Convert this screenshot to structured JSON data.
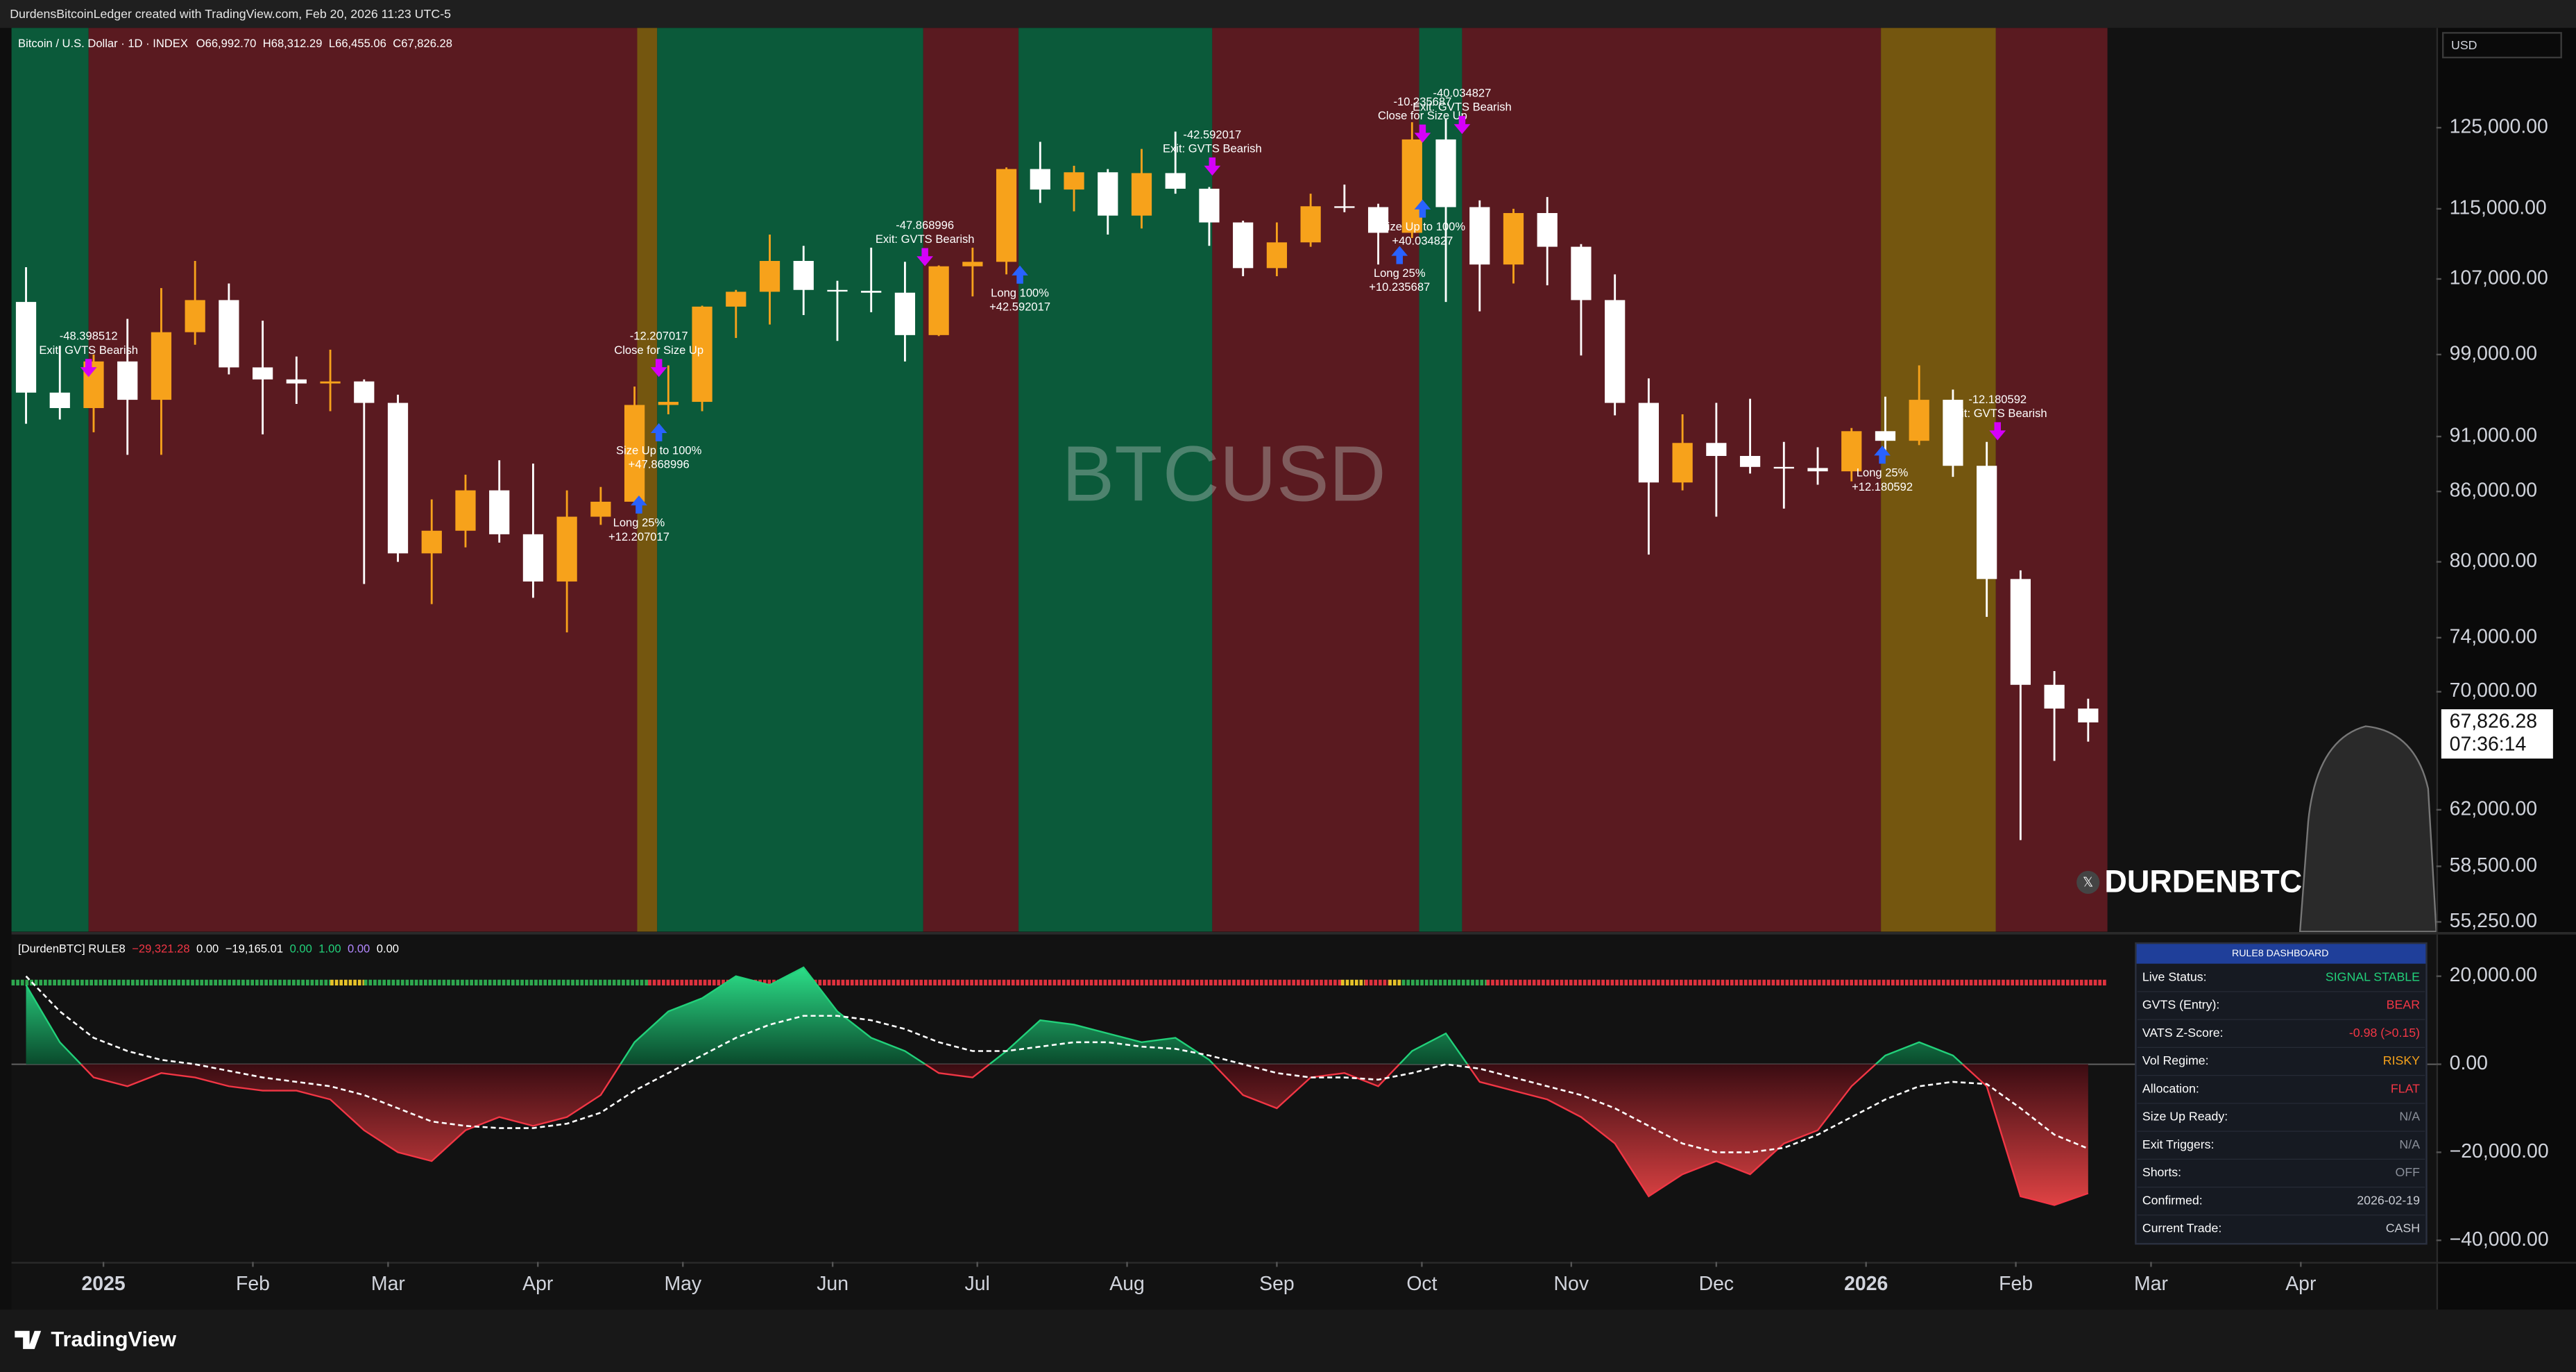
{
  "header": {
    "text": "DurdensBitcoinLedger created with TradingView.com, Feb 20, 2026 11:23 UTC-5"
  },
  "chart_data": [
    {
      "type": "candlestick",
      "title": "Bitcoin / U.S. Dollar · 1D · INDEX",
      "ohlc_labels": [
        "O66,992.70",
        "H68,312.29",
        "L66,455.06",
        "C67,826.28"
      ],
      "watermark": "BTCUSD",
      "currency": "USD",
      "categories": [
        null,
        null,
        null,
        null,
        null,
        null,
        null,
        null,
        null,
        null,
        null,
        null,
        null,
        null,
        null,
        null,
        null,
        null,
        null,
        null,
        null,
        null,
        null,
        null,
        null,
        null,
        null,
        null,
        null,
        null,
        null,
        null,
        null,
        null,
        null,
        null,
        null,
        null,
        null,
        null,
        null,
        null,
        null,
        null,
        null,
        null,
        null,
        null,
        null,
        null,
        null,
        null,
        null,
        null,
        null,
        null,
        null,
        null,
        null,
        null,
        null,
        null
      ],
      "open": [
        104500,
        95200,
        93700,
        98300,
        94500,
        101300,
        104700,
        97700,
        96500,
        96100,
        96300,
        94200,
        80700,
        82600,
        86100,
        82300,
        78400,
        83800,
        85100,
        94000,
        94300,
        104000,
        105600,
        109000,
        105800,
        105700,
        105500,
        101000,
        108400,
        108900,
        119800,
        117300,
        119400,
        114200,
        119300,
        117400,
        113400,
        108200,
        111100,
        115300,
        115200,
        112200,
        123500,
        115200,
        108600,
        114500,
        110600,
        104700,
        94200,
        86800,
        90400,
        89200,
        88200,
        88100,
        87800,
        91500,
        90600,
        94500,
        88300,
        78600,
        70500,
        68800
      ],
      "high": [
        108300,
        99900,
        99000,
        102700,
        106000,
        109000,
        106500,
        102500,
        98800,
        99500,
        96500,
        95000,
        85300,
        87500,
        88800,
        88500,
        86100,
        86400,
        95800,
        97900,
        104100,
        105800,
        112000,
        110700,
        106800,
        110500,
        108900,
        108500,
        110500,
        120000,
        123200,
        120200,
        119800,
        122300,
        124500,
        117600,
        113600,
        113400,
        116800,
        117900,
        115600,
        125700,
        126200,
        116000,
        115000,
        116400,
        110900,
        107500,
        96600,
        93100,
        94200,
        94600,
        90500,
        90000,
        91800,
        94800,
        97900,
        95500,
        90500,
        79300,
        71500,
        69500
      ],
      "low": [
        92200,
        92600,
        91400,
        89300,
        89300,
        100000,
        97000,
        91200,
        94100,
        93400,
        78200,
        80000,
        76600,
        81200,
        81600,
        77100,
        74400,
        83100,
        85100,
        93100,
        93400,
        100700,
        102100,
        103100,
        100400,
        103400,
        98300,
        100900,
        105100,
        107500,
        115700,
        114700,
        112000,
        112700,
        116800,
        110700,
        107300,
        107300,
        110600,
        114600,
        108600,
        111600,
        104500,
        103500,
        106500,
        106300,
        98900,
        93000,
        80600,
        86100,
        83800,
        87600,
        84500,
        86600,
        86900,
        89300,
        90200,
        87300,
        75600,
        60100,
        65200,
        66500
      ],
      "close": [
        95200,
        93700,
        98300,
        94500,
        101300,
        104700,
        97700,
        96500,
        96100,
        96300,
        94200,
        80700,
        82600,
        86100,
        82300,
        78400,
        83800,
        85100,
        94000,
        94300,
        104000,
        105600,
        109000,
        105800,
        105700,
        105500,
        101000,
        108400,
        108900,
        119800,
        117300,
        119400,
        114200,
        119300,
        117400,
        113400,
        108200,
        111100,
        115300,
        115200,
        112200,
        123500,
        115200,
        108600,
        114500,
        110600,
        104700,
        94200,
        86800,
        90400,
        89200,
        88200,
        88100,
        87800,
        91500,
        90600,
        94500,
        88300,
        78600,
        70500,
        68800,
        67826.28
      ],
      "up_color": "#f7a21b",
      "down_color": "#ffffff",
      "log": true,
      "ylim": [
        54700,
        138500
      ],
      "yticks": [
        {
          "value": 125000,
          "label": "125,000.00"
        },
        {
          "value": 115000,
          "label": "115,000.00"
        },
        {
          "value": 107000,
          "label": "107,000.00"
        },
        {
          "value": 99000,
          "label": "99,000.00"
        },
        {
          "value": 91000,
          "label": "91,000.00"
        },
        {
          "value": 86000,
          "label": "86,000.00"
        },
        {
          "value": 80000,
          "label": "80,000.00"
        },
        {
          "value": 74000,
          "label": "74,000.00"
        },
        {
          "value": 70000,
          "label": "70,000.00"
        },
        {
          "value": 62000,
          "label": "62,000.00"
        },
        {
          "value": 58500,
          "label": "58,500.00"
        },
        {
          "value": 55250,
          "label": "55,250.00"
        }
      ],
      "xlim": [
        -0.43,
        71.3
      ],
      "xticks": [
        {
          "value": 2.29,
          "label": "2025"
        },
        {
          "value": 6.71,
          "label": "Feb"
        },
        {
          "value": 10.71,
          "label": "Mar"
        },
        {
          "value": 15.14,
          "label": "Apr"
        },
        {
          "value": 19.43,
          "label": "May"
        },
        {
          "value": 23.86,
          "label": "Jun"
        },
        {
          "value": 28.14,
          "label": "Jul"
        },
        {
          "value": 32.57,
          "label": "Aug"
        },
        {
          "value": 37.0,
          "label": "Sep"
        },
        {
          "value": 41.29,
          "label": "Oct"
        },
        {
          "value": 45.71,
          "label": "Nov"
        },
        {
          "value": 50.0,
          "label": "Dec"
        },
        {
          "value": 54.43,
          "label": "2026"
        },
        {
          "value": 58.86,
          "label": "Feb"
        },
        {
          "value": 62.86,
          "label": "Mar"
        },
        {
          "value": 67.29,
          "label": "Apr"
        }
      ],
      "regimes": [
        {
          "start": -0.43,
          "end": 1.85,
          "color": "#0b5a3a"
        },
        {
          "start": 1.85,
          "end": 18.08,
          "color": "#5a1a20"
        },
        {
          "start": 18.08,
          "end": 18.67,
          "color": "#74560f"
        },
        {
          "start": 18.67,
          "end": 26.54,
          "color": "#0b5a3a"
        },
        {
          "start": 26.54,
          "end": 29.36,
          "color": "#5a1a20"
        },
        {
          "start": 29.36,
          "end": 35.09,
          "color": "#0b5a3a"
        },
        {
          "start": 35.09,
          "end": 41.21,
          "color": "#5a1a20"
        },
        {
          "start": 41.21,
          "end": 42.48,
          "color": "#0b5a3a"
        },
        {
          "start": 42.48,
          "end": 54.87,
          "color": "#5a1a20"
        },
        {
          "start": 54.87,
          "end": 58.27,
          "color": "#74560f"
        },
        {
          "start": 58.27,
          "end": 61.57,
          "color": "#5a1a20"
        }
      ],
      "annotations": [
        {
          "x": 1.85,
          "y": 96900,
          "side": "above",
          "color": "#d500f9",
          "text": [
            "-48.398512",
            "Exit: GVTS Bearish"
          ]
        },
        {
          "x": 18.72,
          "y": 96900,
          "side": "above",
          "color": "#d500f9",
          "text": [
            "-12.207017",
            "Close for Size Up"
          ]
        },
        {
          "x": 18.13,
          "y": 85500,
          "side": "below",
          "color": "#2962ff",
          "text": [
            "Long 25%",
            "+12.207017"
          ]
        },
        {
          "x": 18.72,
          "y": 92100,
          "side": "below",
          "color": "#2962ff",
          "text": [
            "Size Up to 100%",
            "+47.868996"
          ]
        },
        {
          "x": 26.59,
          "y": 108600,
          "side": "above",
          "color": "#d500f9",
          "text": [
            "-47.868996",
            "Exit: GVTS Bearish"
          ]
        },
        {
          "x": 29.4,
          "y": 108300,
          "side": "below",
          "color": "#2962ff",
          "text": [
            "Long 100%",
            "+42.592017"
          ]
        },
        {
          "x": 35.09,
          "y": 119200,
          "side": "above",
          "color": "#d500f9",
          "text": [
            "-42.592017",
            "Exit: GVTS Bearish"
          ]
        },
        {
          "x": 41.31,
          "y": 123300,
          "side": "above",
          "color": "#d500f9",
          "text": [
            "-10.235687",
            "Close for Size Up"
          ]
        },
        {
          "x": 42.48,
          "y": 124400,
          "side": "above",
          "color": "#d500f9",
          "text": [
            "-40.034827",
            "Exit: GVTS Bearish"
          ]
        },
        {
          "x": 41.31,
          "y": 115900,
          "side": "below",
          "color": "#2962ff",
          "text": [
            "Size Up to 100%",
            "+40.034827"
          ]
        },
        {
          "x": 40.63,
          "y": 110500,
          "side": "below",
          "color": "#2962ff",
          "text": [
            "Long 25%",
            "+10.235687"
          ]
        },
        {
          "x": 54.91,
          "y": 90000,
          "side": "below",
          "color": "#2962ff",
          "text": [
            "Long 25%",
            "+12.180592"
          ]
        },
        {
          "x": 58.32,
          "y": 90800,
          "side": "above",
          "color": "#d500f9",
          "text": [
            "-12.180592",
            "Exit: GVTS Bearish"
          ]
        }
      ],
      "last_price": {
        "value": 67826.28,
        "label": "67,826.28"
      },
      "countdown": "07:36:14"
    },
    {
      "type": "area",
      "title": "[DurdenBTC] RULE8",
      "legend_values": [
        "−29,321.28",
        "0.00",
        "−19,165.01",
        "0.00",
        "1.00",
        "0.00",
        "0.00"
      ],
      "legend_colors": [
        "#f23645",
        "#ffffff",
        "#ffffff",
        "#22d17a",
        "#22d17a",
        "#b388ff",
        "#ffffff"
      ],
      "series": [
        {
          "color": "#22d17a",
          "negative_color": "#f23645",
          "values": [
            18000,
            5000,
            -3000,
            -5000,
            -2000,
            -3000,
            -5000,
            -6000,
            -6000,
            -8000,
            -15000,
            -20000,
            -22000,
            -15000,
            -12000,
            -14000,
            -12000,
            -7000,
            5000,
            12000,
            15000,
            20000,
            18000,
            22000,
            12000,
            6000,
            3000,
            -2000,
            -3000,
            3000,
            10000,
            9000,
            7000,
            5000,
            6000,
            1000,
            -7000,
            -10000,
            -3000,
            -2000,
            -5000,
            3000,
            7000,
            -4000,
            -6000,
            -8000,
            -12000,
            -18000,
            -30000,
            -25000,
            -22000,
            -25000,
            -18000,
            -15000,
            -5000,
            2000,
            5000,
            2000,
            -5000,
            -30000,
            -32000,
            -29321.28
          ]
        },
        {
          "color": "#ffffff",
          "dashed": true,
          "values": [
            20000,
            12000,
            6000,
            3000,
            1000,
            0,
            -1500,
            -3000,
            -4000,
            -5000,
            -7000,
            -10000,
            -13000,
            -14000,
            -14500,
            -14500,
            -13500,
            -11000,
            -6000,
            -2000,
            2000,
            6000,
            9000,
            11000,
            11000,
            10000,
            8000,
            5000,
            3000,
            3000,
            4000,
            5000,
            5000,
            4000,
            3500,
            2000,
            0,
            -2000,
            -3000,
            -3000,
            -3500,
            -2000,
            0,
            -1000,
            -3000,
            -5000,
            -7000,
            -10000,
            -14000,
            -18000,
            -20000,
            -20000,
            -19000,
            -16000,
            -12000,
            -8000,
            -5000,
            -4000,
            -4500,
            -10000,
            -16000,
            -19165.01
          ]
        }
      ],
      "ylim": [
        -44900,
        29000
      ],
      "yticks": [
        {
          "value": 20000,
          "label": "20,000.00"
        },
        {
          "value": 0,
          "label": "0.00"
        },
        {
          "value": -20000,
          "label": "−20,000.00"
        },
        {
          "value": -40000,
          "label": "−40,000.00"
        }
      ],
      "zero_line": true,
      "status_strip": [
        {
          "start": -0.43,
          "end": 9.0,
          "color": "#2ea84f"
        },
        {
          "start": 9.0,
          "end": 10.0,
          "color": "#e6c229"
        },
        {
          "start": 10.0,
          "end": 18.4,
          "color": "#2ea84f"
        },
        {
          "start": 18.4,
          "end": 38.9,
          "color": "#e0323e"
        },
        {
          "start": 38.9,
          "end": 39.6,
          "color": "#e6c229"
        },
        {
          "start": 39.6,
          "end": 40.3,
          "color": "#e0323e"
        },
        {
          "start": 40.3,
          "end": 40.7,
          "color": "#e6c229"
        },
        {
          "start": 40.7,
          "end": 43.2,
          "color": "#2ea84f"
        },
        {
          "start": 43.2,
          "end": 71.3,
          "color": "#e0323e"
        }
      ]
    }
  ],
  "dashboard": {
    "title": "RULE8 DASHBOARD",
    "rows": [
      [
        "Live Status:",
        "SIGNAL STABLE"
      ],
      [
        "GVTS (Entry):",
        "BEAR"
      ],
      [
        "VATS Z-Score:",
        "-0.98 (>0.15)"
      ],
      [
        "Vol Regime:",
        "RISKY"
      ],
      [
        "Allocation:",
        "FLAT"
      ],
      [
        "Size Up Ready:",
        "N/A"
      ],
      [
        "Exit Triggers:",
        "N/A"
      ],
      [
        "Shorts:",
        "OFF"
      ],
      [
        "Confirmed:",
        "2026-02-19"
      ],
      [
        "Current Trade:",
        "CASH"
      ]
    ],
    "value_colors": [
      "#22d17a",
      "#f23645",
      "#f23645",
      "#f7a21b",
      "#f23645",
      "#8a8f99",
      "#8a8f99",
      "#8a8f99",
      "#c9ccd3",
      "#c9ccd3"
    ]
  },
  "logo": {
    "text": "DURDENBTC"
  },
  "footer": {
    "brand": "TradingView"
  }
}
